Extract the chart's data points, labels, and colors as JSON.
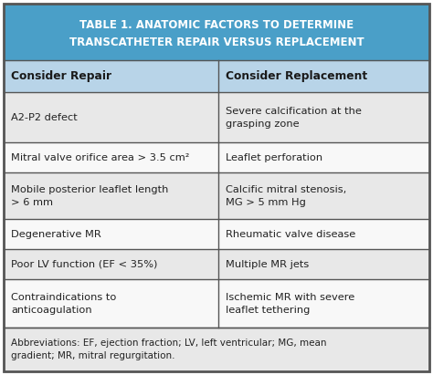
{
  "title_line1": "TABLE 1. ANATOMIC FACTORS TO DETERMINE",
  "title_line2": "TRANSCATHETER REPAIR VERSUS REPLACEMENT",
  "title_bg": "#4a9fc8",
  "title_text_color": "#ffffff",
  "header_bg": "#b8d4e8",
  "header_text_color": "#1a1a1a",
  "col1_header": "Consider Repair",
  "col2_header": "Consider Replacement",
  "rows": [
    [
      "A2-P2 defect",
      "Severe calcification at the\ngrasping zone"
    ],
    [
      "Mitral valve orifice area > 3.5 cm²",
      "Leaflet perforation"
    ],
    [
      "Mobile posterior leaflet length\n> 6 mm",
      "Calcific mitral stenosis,\nMG > 5 mm Hg"
    ],
    [
      "Degenerative MR",
      "Rheumatic valve disease"
    ],
    [
      "Poor LV function (EF < 35%)",
      "Multiple MR jets"
    ],
    [
      "Contraindications to\nanticoagulation",
      "Ischemic MR with severe\nleaflet tethering"
    ]
  ],
  "footer": "Abbreviations: EF, ejection fraction; LV, left ventricular; MG, mean\ngradient; MR, mitral regurgitation.",
  "row_bg_odd": "#e8e8e8",
  "row_bg_even": "#f8f8f8",
  "border_color": "#555555",
  "text_color": "#222222",
  "footer_bg": "#e8e8e8",
  "col_split": 0.505
}
